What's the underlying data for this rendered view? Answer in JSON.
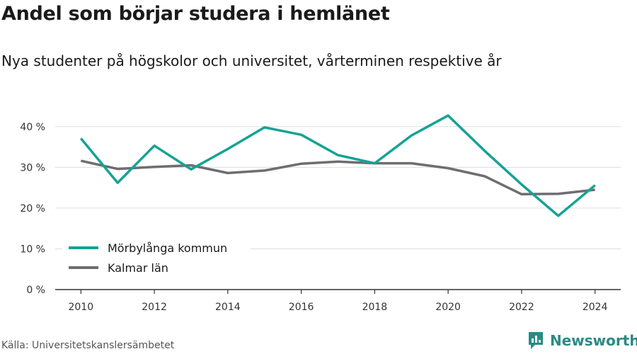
{
  "header": {
    "title": "Andel som börjar studera i hemlänet",
    "subtitle": "Nya studenter på högskolor och universitet, vårterminen respektive år"
  },
  "footer": {
    "source": "Källa: Universitetskanslersämbetet",
    "brand": "Newsworthy",
    "brand_color": "#2b8a84"
  },
  "chart_data": {
    "type": "line",
    "x": [
      2010,
      2011,
      2012,
      2013,
      2014,
      2015,
      2016,
      2017,
      2018,
      2019,
      2020,
      2021,
      2022,
      2023,
      2024
    ],
    "series": [
      {
        "name": "Mörbylånga kommun",
        "color": "#14a394",
        "values": [
          37.1,
          26.2,
          35.3,
          29.5,
          34.5,
          39.8,
          38.0,
          33.0,
          31.0,
          37.8,
          42.7,
          34.0,
          25.8,
          18.1,
          25.6
        ]
      },
      {
        "name": "Kalmar län",
        "color": "#6e6d72",
        "values": [
          31.6,
          29.6,
          30.1,
          30.5,
          28.6,
          29.2,
          30.9,
          31.4,
          31.0,
          31.0,
          29.8,
          27.8,
          23.4,
          23.5,
          24.5
        ]
      }
    ],
    "yticks": [
      "0 %",
      "10 %",
      "20 %",
      "30 %",
      "40 %"
    ],
    "ytick_values": [
      0,
      10,
      20,
      30,
      40
    ],
    "xticks": [
      "2010",
      "2012",
      "2014",
      "2016",
      "2018",
      "2020",
      "2022",
      "2024"
    ],
    "xtick_values": [
      2010,
      2012,
      2014,
      2016,
      2018,
      2020,
      2022,
      2024
    ],
    "ylim": [
      0,
      45
    ],
    "xlim": [
      2009.3,
      2024.7
    ],
    "grid": true,
    "legend_position": "bottom-left"
  }
}
